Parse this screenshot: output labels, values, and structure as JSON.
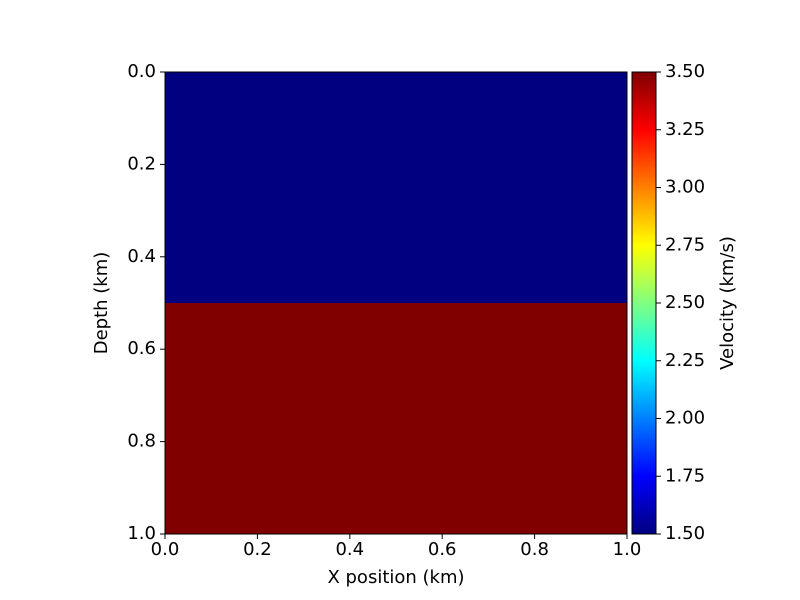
{
  "chart_data": {
    "type": "heatmap",
    "x_label": "X position (km)",
    "y_label": "Depth (km)",
    "colorbar_label": "Velocity (km/s)",
    "colormap": "jet",
    "x_bins": [
      0,
      1.0
    ],
    "y_bins": [
      0,
      0.5,
      1.0
    ],
    "values": [
      [
        1.5
      ],
      [
        3.5
      ]
    ],
    "xlim": [
      0,
      1.0
    ],
    "ylim": [
      1.0,
      0
    ],
    "xticks": [
      {
        "value": 0,
        "label": "0.0"
      },
      0.2,
      0.4,
      0.6,
      0.8,
      {
        "value": 1.0,
        "label": "1.0"
      }
    ],
    "yticks": [
      {
        "value": 0,
        "label": "0.0"
      },
      0.2,
      0.4,
      0.6,
      0.8,
      {
        "value": 1.0,
        "label": "1.0"
      }
    ],
    "clim": [
      1.5,
      3.5
    ],
    "cticks": [
      {
        "value": 1.5,
        "label": "1.50"
      },
      1.75,
      {
        "value": 2.0,
        "label": "2.00"
      },
      2.25,
      {
        "value": 2.5,
        "label": "2.50"
      },
      2.75,
      {
        "value": 3.0,
        "label": "3.00"
      },
      3.25,
      {
        "value": 3.5,
        "label": "3.50"
      }
    ]
  }
}
